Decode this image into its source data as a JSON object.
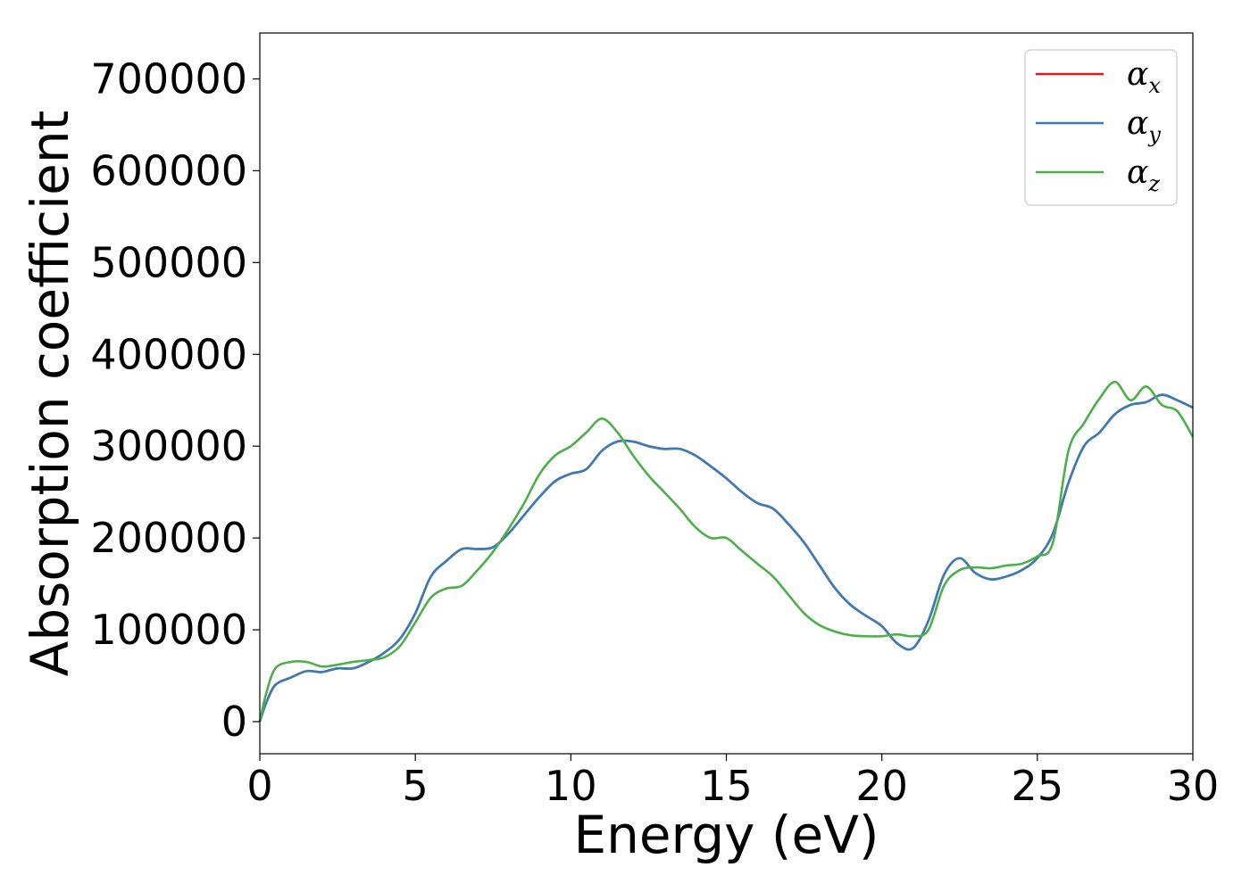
{
  "chart_data": {
    "type": "line",
    "title": "",
    "xlabel": "Energy (eV)",
    "ylabel": "Absorption coefficient",
    "xlim": [
      0,
      30
    ],
    "ylim": [
      -35000,
      750000
    ],
    "xticks": [
      0,
      5,
      10,
      15,
      20,
      25,
      30
    ],
    "yticks": [
      0,
      100000,
      200000,
      300000,
      400000,
      500000,
      600000,
      700000
    ],
    "grid": false,
    "legend_position": "top-right",
    "series": [
      {
        "name": "α_x",
        "label_base": "α",
        "label_sub": "x",
        "color": "#e41a1c",
        "x": [
          0,
          0.2,
          0.5,
          1,
          1.5,
          2,
          2.5,
          3,
          3.5,
          4,
          4.5,
          5,
          5.5,
          6,
          6.5,
          7,
          7.5,
          8,
          8.5,
          9,
          9.5,
          10,
          10.5,
          11,
          11.5,
          12,
          12.5,
          13,
          13.5,
          14,
          14.5,
          15,
          15.5,
          16,
          16.5,
          17,
          17.5,
          18,
          18.5,
          19,
          19.5,
          20,
          20.5,
          21,
          21.5,
          22,
          22.5,
          23,
          23.5,
          24,
          24.5,
          25,
          25.5,
          26,
          26.5,
          27,
          27.5,
          28,
          28.5,
          29,
          29.5,
          30
        ],
        "y": [
          0,
          20000,
          40000,
          48000,
          55000,
          54000,
          58000,
          58000,
          65000,
          75000,
          90000,
          118000,
          158000,
          175000,
          188000,
          188000,
          190000,
          205000,
          225000,
          245000,
          262000,
          270000,
          275000,
          295000,
          305000,
          305000,
          300000,
          297000,
          297000,
          290000,
          278000,
          265000,
          250000,
          238000,
          232000,
          215000,
          195000,
          170000,
          145000,
          127000,
          115000,
          104000,
          85000,
          80000,
          110000,
          160000,
          178000,
          162000,
          155000,
          158000,
          165000,
          178000,
          205000,
          260000,
          300000,
          315000,
          335000,
          345000,
          348000,
          356000,
          350000,
          342000
        ]
      },
      {
        "name": "α_y",
        "label_base": "α",
        "label_sub": "y",
        "color": "#377eb8",
        "x": [
          0,
          0.2,
          0.5,
          1,
          1.5,
          2,
          2.5,
          3,
          3.5,
          4,
          4.5,
          5,
          5.5,
          6,
          6.5,
          7,
          7.5,
          8,
          8.5,
          9,
          9.5,
          10,
          10.5,
          11,
          11.5,
          12,
          12.5,
          13,
          13.5,
          14,
          14.5,
          15,
          15.5,
          16,
          16.5,
          17,
          17.5,
          18,
          18.5,
          19,
          19.5,
          20,
          20.5,
          21,
          21.5,
          22,
          22.5,
          23,
          23.5,
          24,
          24.5,
          25,
          25.5,
          26,
          26.5,
          27,
          27.5,
          28,
          28.5,
          29,
          29.5,
          30
        ],
        "y": [
          0,
          20000,
          40000,
          48000,
          55000,
          54000,
          58000,
          58000,
          65000,
          75000,
          90000,
          118000,
          158000,
          175000,
          188000,
          188000,
          190000,
          205000,
          225000,
          245000,
          262000,
          270000,
          275000,
          295000,
          305000,
          305000,
          300000,
          297000,
          297000,
          290000,
          278000,
          265000,
          250000,
          238000,
          232000,
          215000,
          195000,
          170000,
          145000,
          127000,
          115000,
          104000,
          85000,
          80000,
          110000,
          160000,
          178000,
          162000,
          155000,
          158000,
          165000,
          178000,
          205000,
          260000,
          300000,
          315000,
          335000,
          345000,
          348000,
          356000,
          350000,
          342000
        ]
      },
      {
        "name": "α_z",
        "label_base": "α",
        "label_sub": "z",
        "color": "#4daf4a",
        "x": [
          0,
          0.2,
          0.5,
          1,
          1.5,
          2,
          2.5,
          3,
          3.5,
          4,
          4.5,
          5,
          5.5,
          6,
          6.5,
          7,
          7.5,
          8,
          8.5,
          9,
          9.5,
          10,
          10.5,
          11,
          11.5,
          12,
          12.5,
          13,
          13.5,
          14,
          14.5,
          15,
          15.5,
          16,
          16.5,
          17,
          17.5,
          18,
          18.5,
          19,
          19.5,
          20,
          20.5,
          21,
          21.5,
          22,
          22.5,
          23,
          23.5,
          24,
          24.5,
          25,
          25.5,
          26,
          26.5,
          27,
          27.5,
          28,
          28.5,
          29,
          29.5,
          30
        ],
        "y": [
          0,
          30000,
          58000,
          65000,
          65000,
          60000,
          62000,
          65000,
          67000,
          70000,
          82000,
          108000,
          135000,
          145000,
          148000,
          165000,
          185000,
          210000,
          238000,
          270000,
          290000,
          300000,
          315000,
          330000,
          315000,
          290000,
          268000,
          250000,
          232000,
          212000,
          200000,
          200000,
          186000,
          172000,
          158000,
          138000,
          118000,
          105000,
          98000,
          94000,
          93000,
          93000,
          95000,
          93000,
          100000,
          148000,
          165000,
          168000,
          167000,
          170000,
          172000,
          180000,
          195000,
          295000,
          325000,
          352000,
          370000,
          350000,
          365000,
          345000,
          338000,
          310000
        ]
      }
    ]
  }
}
